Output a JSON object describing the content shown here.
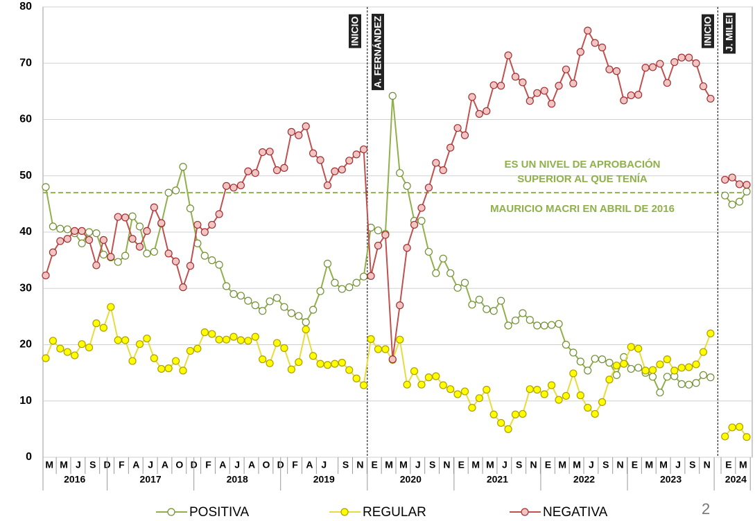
{
  "chart_data": {
    "type": "line",
    "categories": [
      "M",
      null,
      "M",
      null,
      "J",
      null,
      "S",
      null,
      "D",
      null,
      "F",
      null,
      "A",
      null,
      "J",
      null,
      "A",
      null,
      "O",
      null,
      "D",
      null,
      "F",
      null,
      "A",
      null,
      "J",
      null,
      "A",
      null,
      "O",
      null,
      "D",
      null,
      "F",
      null,
      "A",
      null,
      "J",
      null,
      null,
      "S",
      null,
      "N",
      null,
      "E",
      null,
      "M",
      null,
      "M",
      null,
      "J",
      null,
      "S",
      null,
      "N",
      null,
      "E",
      null,
      "M",
      null,
      "M",
      null,
      "J",
      null,
      "S",
      null,
      "N",
      null,
      "E",
      null,
      "M",
      null,
      "M",
      null,
      "J",
      null,
      "S",
      null,
      "N",
      null,
      "E",
      null,
      "M",
      null,
      "M",
      null,
      "J",
      null,
      "S",
      null,
      "N",
      null,
      null,
      "E",
      null,
      "M",
      null
    ],
    "category_years": [
      "2016",
      "2016",
      "2016",
      "2016",
      "2016",
      "2016",
      "2016",
      "2016",
      "2016",
      "2017",
      "2017",
      "2017",
      "2017",
      "2017",
      "2017",
      "2017",
      "2017",
      "2017",
      "2017",
      "2017",
      "2017",
      "2018",
      "2018",
      "2018",
      "2018",
      "2018",
      "2018",
      "2018",
      "2018",
      "2018",
      "2018",
      "2018",
      "2018",
      "2019",
      "2019",
      "2019",
      "2019",
      "2019",
      "2019",
      "2019",
      "2019",
      "2019",
      "2019",
      "2019",
      "2019",
      "2020",
      "2020",
      "2020",
      "2020",
      "2020",
      "2020",
      "2020",
      "2020",
      "2020",
      "2020",
      "2020",
      "2020",
      "2021",
      "2021",
      "2021",
      "2021",
      "2021",
      "2021",
      "2021",
      "2021",
      "2021",
      "2021",
      "2021",
      "2021",
      "2022",
      "2022",
      "2022",
      "2022",
      "2022",
      "2022",
      "2022",
      "2022",
      "2022",
      "2022",
      "2022",
      "2022",
      "2023",
      "2023",
      "2023",
      "2023",
      "2023",
      "2023",
      "2023",
      "2023",
      "2023",
      "2023",
      "2023",
      "2023",
      null,
      "2024",
      "2024",
      "2024",
      "2024"
    ],
    "series": [
      {
        "name": "POSITIVA",
        "color": "#8fb04a",
        "marker_fill": "#ffffff",
        "marker_stroke": "#6f8f30",
        "values": [
          48,
          41,
          40.6,
          40.5,
          39.8,
          38,
          40,
          39.8,
          36,
          35.5,
          34.7,
          35.8,
          42.8,
          41,
          36.2,
          36.5,
          41.5,
          47,
          47.4,
          51.6,
          44.2,
          38,
          35.8,
          35,
          34.2,
          30.4,
          29,
          28.7,
          27.8,
          27,
          26,
          27.7,
          28.3,
          26.7,
          25.6,
          25.1,
          24,
          26.2,
          29.5,
          34.4,
          31,
          29.9,
          30.2,
          31,
          32.1,
          40.8,
          40.3,
          39.7,
          64.2,
          50.5,
          48.2,
          42,
          42,
          36.5,
          32.7,
          35.3,
          32.7,
          30.1,
          31,
          27.1,
          28,
          26.3,
          26,
          27.8,
          23.4,
          24.3,
          25.6,
          24.4,
          23.4,
          23.4,
          23.5,
          23.7,
          20,
          18.6,
          17,
          15.4,
          17.5,
          17.4,
          16.8,
          14.6,
          17.8,
          15.7,
          15.9,
          15,
          14.3,
          11.5,
          14.3,
          14.4,
          13,
          12.9,
          13.2,
          14.6,
          14.2,
          null,
          46.5,
          44.9,
          45.4,
          47.2
        ]
      },
      {
        "name": "REGULAR",
        "color": "#e6dc3c",
        "marker_fill": "#ffff00",
        "marker_stroke": "#b09c00",
        "values": [
          17.6,
          20.7,
          19.3,
          18.7,
          18.1,
          20.1,
          19.5,
          23.8,
          23,
          26.7,
          20.8,
          20.8,
          17.1,
          20.1,
          21.1,
          17.6,
          15.7,
          15.8,
          17.1,
          15.4,
          18.9,
          19.3,
          22.2,
          21.9,
          20.9,
          20.9,
          21.4,
          20.8,
          20.7,
          21.4,
          17.4,
          16.7,
          20.3,
          19.4,
          15.6,
          16.9,
          22.7,
          18,
          16.6,
          16.4,
          16.6,
          16.8,
          15.5,
          14,
          12.8,
          21,
          19.2,
          19.2,
          17.3,
          20.9,
          12.9,
          15.3,
          12.9,
          14.2,
          14.4,
          12.8,
          12.1,
          11.2,
          11.7,
          8.8,
          10.5,
          12,
          7.6,
          6.1,
          5,
          7.6,
          7.7,
          12.1,
          12,
          11.2,
          12.8,
          10.2,
          10.9,
          14.9,
          11,
          8.8,
          7.7,
          9.8,
          13.8,
          16.3,
          16.6,
          19.6,
          19.3,
          15.4,
          15.5,
          16.5,
          17.4,
          15.4,
          15.9,
          16,
          16.5,
          18.7,
          22,
          null,
          3.7,
          5.3,
          5.4,
          3.6
        ]
      },
      {
        "name": "NEGATIVA",
        "color": "#c0504d",
        "marker_fill": "#f2c4c4",
        "marker_stroke": "#a03030",
        "values": [
          32.3,
          36.4,
          38.4,
          38.8,
          40.2,
          40.2,
          38.6,
          34.1,
          38.6,
          35.6,
          42.7,
          42.6,
          38.8,
          37.4,
          40.2,
          44.4,
          41.6,
          36.2,
          34.8,
          30.2,
          34,
          41.3,
          40,
          41.3,
          43.2,
          48.2,
          47.9,
          48.3,
          50.8,
          50.5,
          54.2,
          54.3,
          51,
          51.4,
          57.8,
          57.2,
          58.8,
          54,
          52.8,
          48.3,
          50.8,
          51.1,
          52.7,
          53.8,
          54.7,
          32.2,
          37.6,
          39.5,
          17.4,
          27,
          37.2,
          41.3,
          44.3,
          47.9,
          52.3,
          51,
          55,
          58.5,
          57.2,
          64,
          61,
          61.5,
          66.1,
          66,
          71.4,
          67.6,
          66.6,
          63.3,
          64.7,
          65.1,
          62.8,
          66,
          68.9,
          66.4,
          72,
          75.8,
          73.6,
          72.8,
          68.9,
          68.6,
          63.4,
          64.3,
          64.4,
          69.2,
          69.3,
          69.9,
          66.5,
          70.2,
          71,
          71,
          70,
          65.9,
          63.7,
          null,
          49.3,
          49.7,
          48.5,
          48.4
        ]
      }
    ],
    "ylim": [
      0,
      80
    ],
    "yticks": [
      0,
      10,
      20,
      30,
      40,
      50,
      60,
      70,
      80
    ],
    "grid": true,
    "reference_line": {
      "value": 47,
      "color": "#8fb04a",
      "labels": [
        "ES UN NIVEL DE APROBACIÓN",
        "SUPERIOR AL QUE TENÍA",
        "MAURICIO MACRI EN ABRIL DE 2016"
      ]
    },
    "event_markers": [
      {
        "labels": [
          "INICIO",
          "A. FERNÁNDEZ"
        ]
      },
      {
        "labels": [
          "INICIO",
          "J. MILEI"
        ]
      }
    ],
    "legend": "bottom",
    "page_number": "2"
  }
}
